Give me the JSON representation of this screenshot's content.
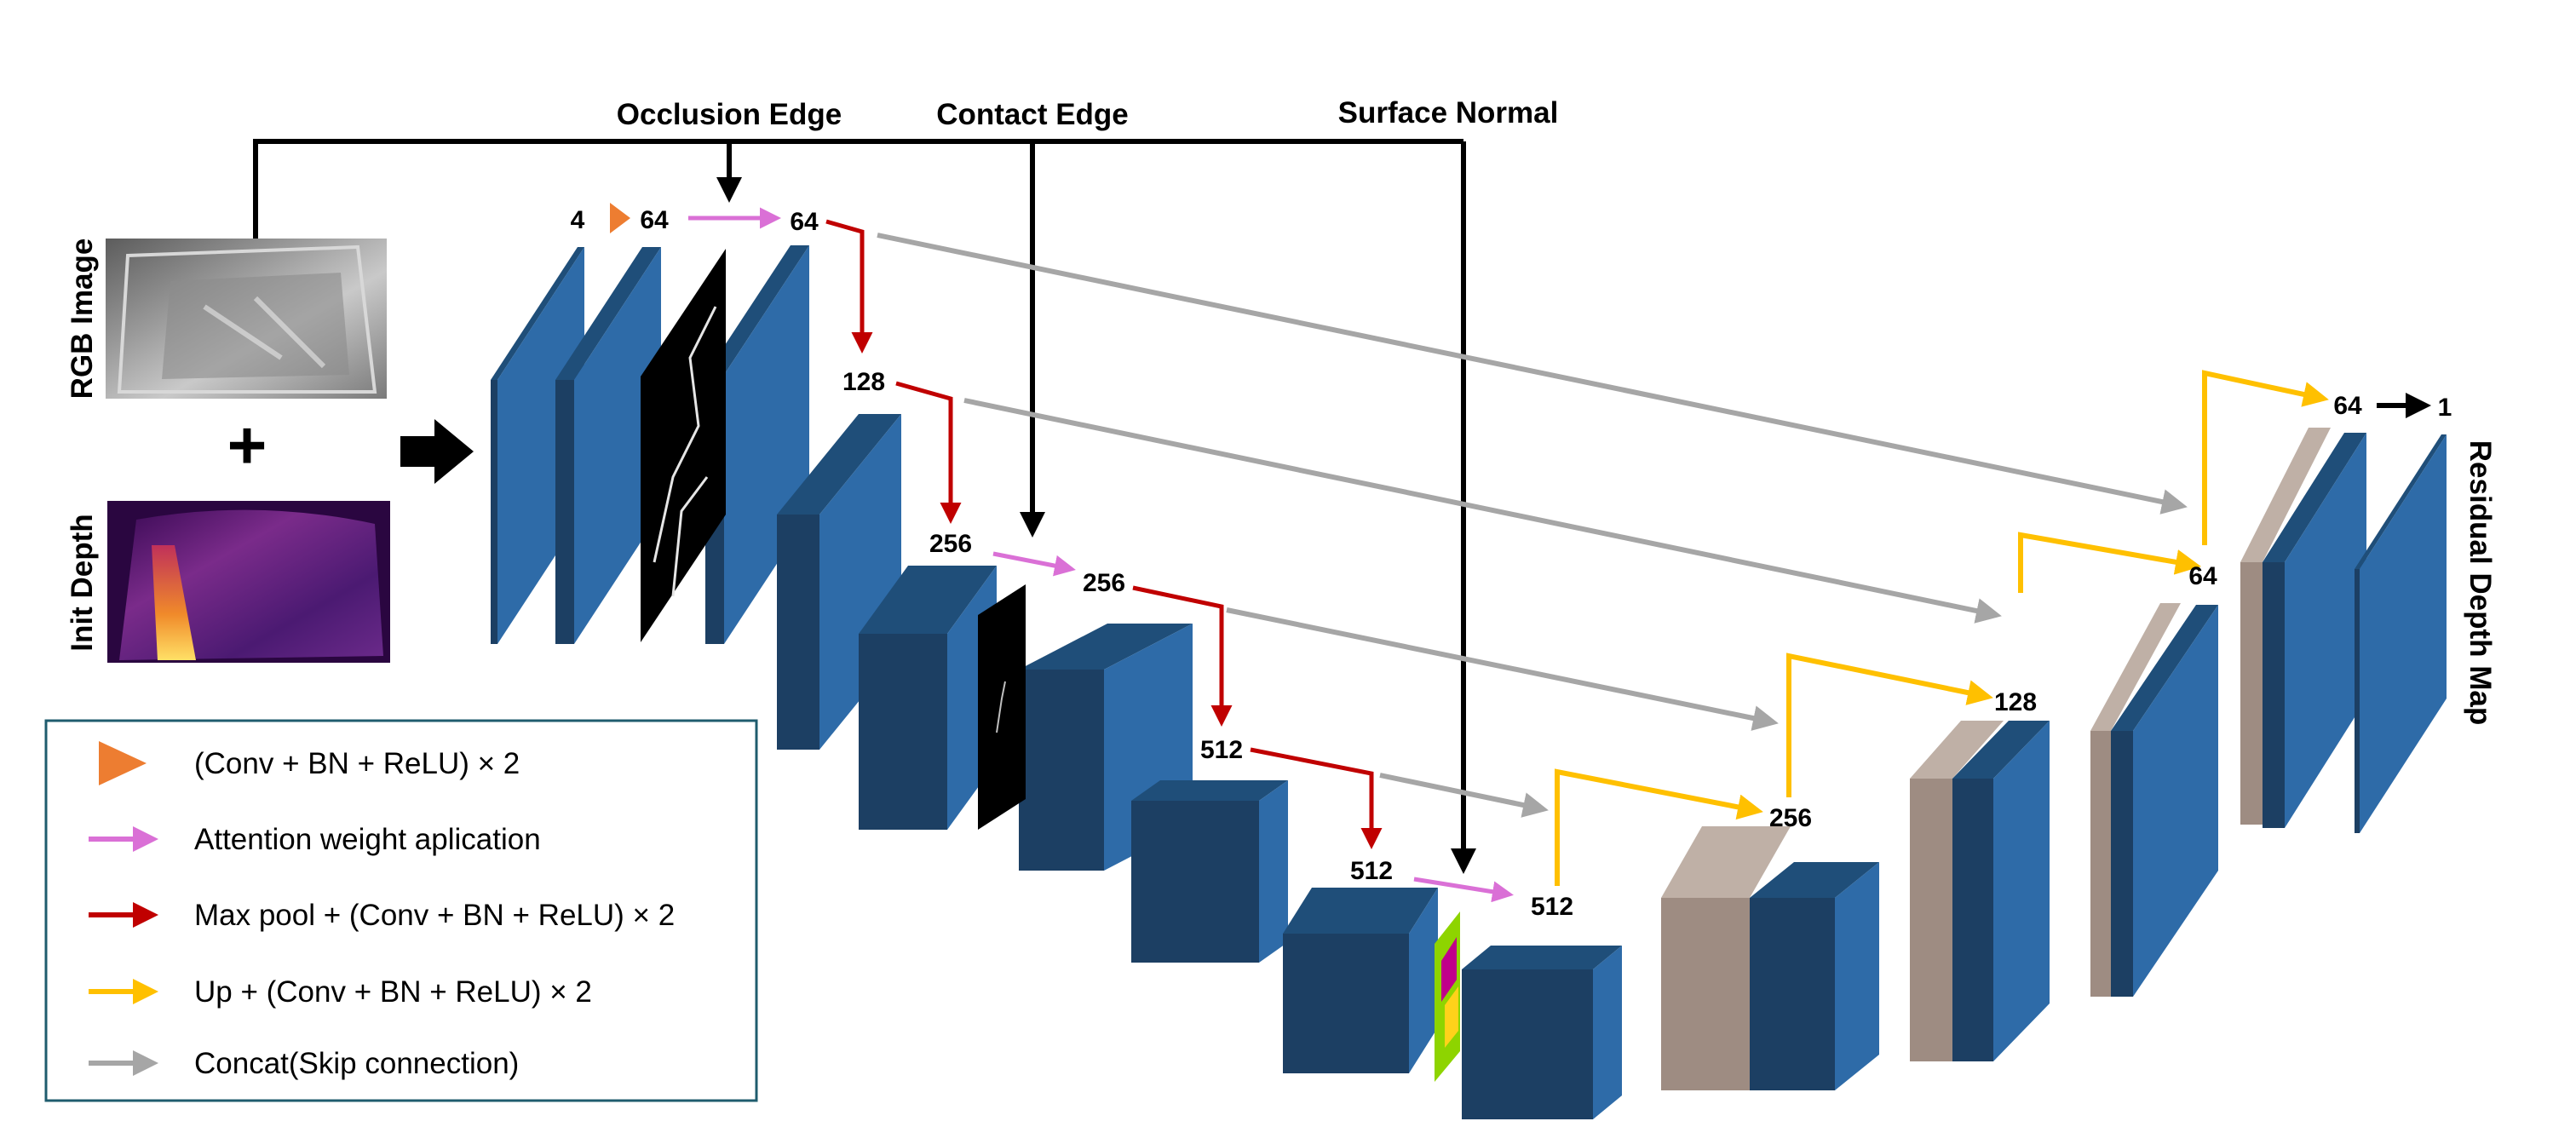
{
  "inputs": {
    "rgb_label": "RGB Image",
    "depth_label": "Init Depth",
    "plus": "+"
  },
  "top_labels": {
    "occlusion": "Occlusion Edge",
    "contact": "Contact Edge",
    "normal": "Surface Normal"
  },
  "output_label": "Residual Depth Map",
  "channels": {
    "c_in": "4",
    "c_e1a": "64",
    "c_e1b": "64",
    "c_e2": "128",
    "c_e3a": "256",
    "c_e3b": "256",
    "c_e4": "512",
    "c_e5a": "512",
    "c_e5b": "512",
    "c_d4": "256",
    "c_d3": "128",
    "c_d2": "64",
    "c_d1": "64",
    "c_out": "1"
  },
  "legend": [
    {
      "text": "(Conv + BN + ReLU) × 2",
      "color": "#ED7D31",
      "marker": "triangle"
    },
    {
      "text": "Attention weight aplication",
      "color": "#DA70D6",
      "marker": "arrow"
    },
    {
      "text": "Max pool + (Conv + BN + ReLU) × 2",
      "color": "#C00000",
      "marker": "arrow"
    },
    {
      "text": "Up + (Conv + BN + ReLU) × 2",
      "color": "#FFC000",
      "marker": "arrow"
    },
    {
      "text": "Concat(Skip connection)",
      "color": "#A6A6A6",
      "marker": "arrow"
    }
  ],
  "colors": {
    "block_front": "#2E6BA8",
    "block_top": "#1F4E79",
    "block_side": "#1C3F63",
    "concat_front": "#9E8C82",
    "concat_top": "#BFB0A6",
    "legend_border": "#1F5C6E"
  }
}
